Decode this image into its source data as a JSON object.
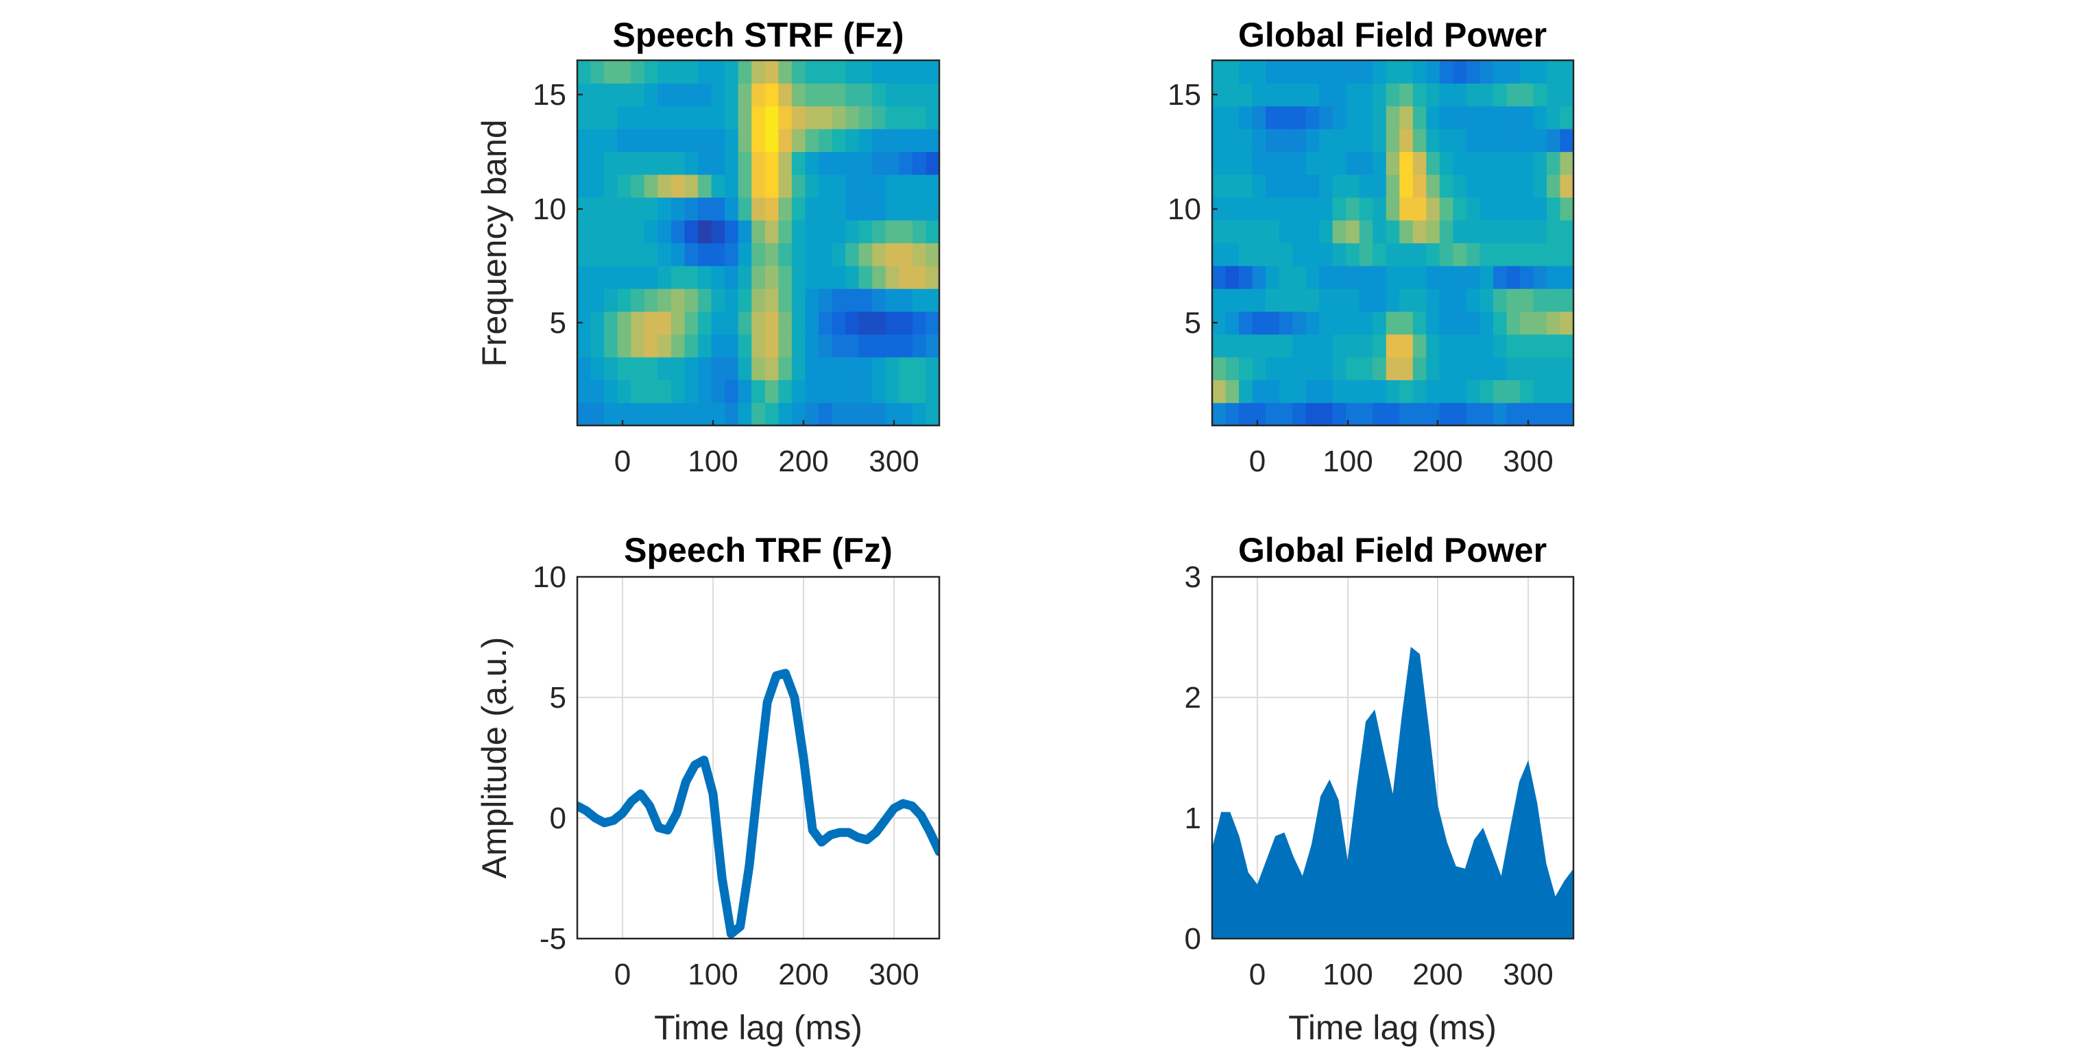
{
  "chart_data": [
    {
      "type": "heatmap",
      "title": "Speech STRF (Fz)",
      "xlabel": "",
      "ylabel": "Frequency band",
      "xlim": [
        -50,
        350
      ],
      "ylim": [
        0.5,
        16.5
      ],
      "xticks": [
        "0",
        "100",
        "200",
        "300"
      ],
      "yticks": [
        "5",
        "10",
        "15"
      ],
      "x": [
        -50,
        -35,
        -20,
        -5,
        10,
        25,
        40,
        55,
        70,
        85,
        100,
        115,
        130,
        145,
        160,
        175,
        190,
        205,
        220,
        235,
        250,
        265,
        280,
        295,
        310,
        325,
        340
      ],
      "bands": [
        1,
        2,
        3,
        4,
        5,
        6,
        7,
        8,
        9,
        10,
        11,
        12,
        13,
        14,
        15,
        16
      ],
      "z": [
        [
          0.25,
          0.25,
          0.3,
          0.3,
          0.3,
          0.3,
          0.3,
          0.3,
          0.3,
          0.3,
          0.3,
          0.25,
          0.35,
          0.5,
          0.45,
          0.35,
          0.3,
          0.25,
          0.2,
          0.25,
          0.25,
          0.25,
          0.25,
          0.3,
          0.3,
          0.35,
          0.4
        ],
        [
          0.3,
          0.3,
          0.35,
          0.4,
          0.45,
          0.45,
          0.45,
          0.4,
          0.35,
          0.3,
          0.25,
          0.2,
          0.3,
          0.45,
          0.55,
          0.45,
          0.35,
          0.3,
          0.3,
          0.3,
          0.3,
          0.3,
          0.35,
          0.4,
          0.45,
          0.45,
          0.4
        ],
        [
          0.3,
          0.35,
          0.4,
          0.45,
          0.45,
          0.45,
          0.4,
          0.4,
          0.35,
          0.3,
          0.25,
          0.25,
          0.4,
          0.65,
          0.7,
          0.55,
          0.4,
          0.3,
          0.3,
          0.3,
          0.3,
          0.3,
          0.35,
          0.4,
          0.45,
          0.45,
          0.4
        ],
        [
          0.35,
          0.4,
          0.5,
          0.6,
          0.7,
          0.75,
          0.7,
          0.6,
          0.5,
          0.4,
          0.3,
          0.3,
          0.45,
          0.7,
          0.75,
          0.6,
          0.4,
          0.3,
          0.25,
          0.2,
          0.2,
          0.15,
          0.15,
          0.15,
          0.15,
          0.2,
          0.25
        ],
        [
          0.35,
          0.4,
          0.5,
          0.6,
          0.7,
          0.75,
          0.75,
          0.65,
          0.55,
          0.45,
          0.35,
          0.35,
          0.5,
          0.7,
          0.75,
          0.6,
          0.4,
          0.3,
          0.2,
          0.15,
          0.1,
          0.08,
          0.08,
          0.1,
          0.1,
          0.15,
          0.2
        ],
        [
          0.35,
          0.35,
          0.4,
          0.45,
          0.5,
          0.55,
          0.6,
          0.65,
          0.6,
          0.5,
          0.4,
          0.35,
          0.45,
          0.65,
          0.7,
          0.55,
          0.4,
          0.3,
          0.25,
          0.2,
          0.2,
          0.2,
          0.25,
          0.3,
          0.3,
          0.35,
          0.35
        ],
        [
          0.35,
          0.35,
          0.35,
          0.35,
          0.35,
          0.35,
          0.4,
          0.45,
          0.45,
          0.4,
          0.35,
          0.3,
          0.4,
          0.6,
          0.65,
          0.55,
          0.4,
          0.35,
          0.35,
          0.35,
          0.4,
          0.5,
          0.6,
          0.7,
          0.75,
          0.75,
          0.7
        ],
        [
          0.4,
          0.4,
          0.4,
          0.4,
          0.4,
          0.4,
          0.35,
          0.3,
          0.2,
          0.15,
          0.15,
          0.2,
          0.35,
          0.55,
          0.6,
          0.5,
          0.4,
          0.35,
          0.35,
          0.4,
          0.5,
          0.6,
          0.7,
          0.75,
          0.75,
          0.7,
          0.65
        ],
        [
          0.4,
          0.4,
          0.4,
          0.4,
          0.4,
          0.35,
          0.3,
          0.2,
          0.1,
          0.05,
          0.08,
          0.15,
          0.3,
          0.6,
          0.7,
          0.55,
          0.4,
          0.35,
          0.35,
          0.35,
          0.4,
          0.45,
          0.5,
          0.55,
          0.55,
          0.5,
          0.45
        ],
        [
          0.4,
          0.4,
          0.4,
          0.4,
          0.4,
          0.4,
          0.35,
          0.3,
          0.25,
          0.2,
          0.2,
          0.3,
          0.5,
          0.75,
          0.8,
          0.6,
          0.45,
          0.35,
          0.35,
          0.35,
          0.3,
          0.3,
          0.3,
          0.35,
          0.35,
          0.35,
          0.35
        ],
        [
          0.35,
          0.35,
          0.4,
          0.45,
          0.5,
          0.6,
          0.7,
          0.75,
          0.7,
          0.55,
          0.4,
          0.35,
          0.55,
          0.85,
          0.9,
          0.7,
          0.5,
          0.4,
          0.35,
          0.35,
          0.3,
          0.3,
          0.3,
          0.35,
          0.35,
          0.35,
          0.35
        ],
        [
          0.35,
          0.35,
          0.4,
          0.4,
          0.4,
          0.4,
          0.4,
          0.4,
          0.35,
          0.3,
          0.3,
          0.35,
          0.55,
          0.85,
          0.9,
          0.7,
          0.45,
          0.35,
          0.3,
          0.3,
          0.3,
          0.3,
          0.25,
          0.25,
          0.2,
          0.15,
          0.1
        ],
        [
          0.35,
          0.35,
          0.35,
          0.3,
          0.3,
          0.3,
          0.3,
          0.3,
          0.3,
          0.3,
          0.3,
          0.35,
          0.6,
          0.9,
          0.95,
          0.8,
          0.65,
          0.55,
          0.5,
          0.45,
          0.4,
          0.35,
          0.3,
          0.3,
          0.3,
          0.3,
          0.3
        ],
        [
          0.4,
          0.4,
          0.4,
          0.35,
          0.35,
          0.35,
          0.35,
          0.35,
          0.35,
          0.35,
          0.35,
          0.4,
          0.6,
          0.9,
          0.95,
          0.85,
          0.75,
          0.7,
          0.7,
          0.65,
          0.6,
          0.55,
          0.5,
          0.45,
          0.45,
          0.45,
          0.4
        ],
        [
          0.4,
          0.4,
          0.4,
          0.4,
          0.4,
          0.35,
          0.3,
          0.3,
          0.3,
          0.3,
          0.35,
          0.4,
          0.6,
          0.85,
          0.9,
          0.75,
          0.6,
          0.55,
          0.55,
          0.55,
          0.5,
          0.5,
          0.45,
          0.4,
          0.4,
          0.4,
          0.4
        ],
        [
          0.45,
          0.5,
          0.55,
          0.55,
          0.5,
          0.45,
          0.4,
          0.4,
          0.4,
          0.35,
          0.35,
          0.4,
          0.55,
          0.7,
          0.75,
          0.6,
          0.5,
          0.45,
          0.45,
          0.45,
          0.4,
          0.4,
          0.35,
          0.35,
          0.35,
          0.35,
          0.35
        ]
      ]
    },
    {
      "type": "heatmap",
      "title": "Global Field Power",
      "xlabel": "",
      "ylabel": "",
      "xlim": [
        -50,
        350
      ],
      "ylim": [
        0.5,
        16.5
      ],
      "xticks": [
        "0",
        "100",
        "200",
        "300"
      ],
      "yticks": [
        "5",
        "10",
        "15"
      ],
      "x": [
        -50,
        -35,
        -20,
        -5,
        10,
        25,
        40,
        55,
        70,
        85,
        100,
        115,
        130,
        145,
        160,
        175,
        190,
        205,
        220,
        235,
        250,
        265,
        280,
        295,
        310,
        325,
        340
      ],
      "bands": [
        1,
        2,
        3,
        4,
        5,
        6,
        7,
        8,
        9,
        10,
        11,
        12,
        13,
        14,
        15,
        16
      ],
      "z": [
        [
          0.25,
          0.2,
          0.15,
          0.15,
          0.2,
          0.2,
          0.15,
          0.1,
          0.1,
          0.15,
          0.2,
          0.2,
          0.15,
          0.15,
          0.2,
          0.2,
          0.2,
          0.15,
          0.15,
          0.2,
          0.2,
          0.25,
          0.2,
          0.2,
          0.2,
          0.2,
          0.2
        ],
        [
          0.7,
          0.6,
          0.4,
          0.3,
          0.3,
          0.35,
          0.35,
          0.3,
          0.3,
          0.35,
          0.35,
          0.35,
          0.35,
          0.4,
          0.45,
          0.4,
          0.35,
          0.35,
          0.35,
          0.4,
          0.45,
          0.5,
          0.5,
          0.45,
          0.4,
          0.4,
          0.4
        ],
        [
          0.55,
          0.5,
          0.45,
          0.4,
          0.35,
          0.35,
          0.35,
          0.35,
          0.35,
          0.4,
          0.45,
          0.45,
          0.5,
          0.75,
          0.75,
          0.5,
          0.4,
          0.35,
          0.35,
          0.35,
          0.35,
          0.35,
          0.4,
          0.4,
          0.4,
          0.4,
          0.4
        ],
        [
          0.4,
          0.4,
          0.4,
          0.4,
          0.4,
          0.4,
          0.35,
          0.35,
          0.35,
          0.4,
          0.4,
          0.4,
          0.45,
          0.8,
          0.8,
          0.55,
          0.4,
          0.35,
          0.35,
          0.35,
          0.35,
          0.4,
          0.45,
          0.45,
          0.45,
          0.45,
          0.45
        ],
        [
          0.35,
          0.3,
          0.2,
          0.15,
          0.15,
          0.2,
          0.25,
          0.3,
          0.35,
          0.35,
          0.35,
          0.35,
          0.4,
          0.55,
          0.55,
          0.45,
          0.35,
          0.3,
          0.3,
          0.3,
          0.35,
          0.45,
          0.55,
          0.6,
          0.6,
          0.65,
          0.7
        ],
        [
          0.35,
          0.35,
          0.35,
          0.35,
          0.4,
          0.4,
          0.4,
          0.4,
          0.35,
          0.35,
          0.35,
          0.3,
          0.3,
          0.35,
          0.4,
          0.4,
          0.35,
          0.3,
          0.3,
          0.35,
          0.4,
          0.5,
          0.55,
          0.55,
          0.5,
          0.5,
          0.5
        ],
        [
          0.15,
          0.1,
          0.15,
          0.25,
          0.35,
          0.4,
          0.4,
          0.35,
          0.3,
          0.3,
          0.3,
          0.3,
          0.3,
          0.35,
          0.35,
          0.35,
          0.3,
          0.3,
          0.3,
          0.3,
          0.35,
          0.2,
          0.15,
          0.2,
          0.25,
          0.3,
          0.3
        ],
        [
          0.35,
          0.35,
          0.4,
          0.4,
          0.4,
          0.4,
          0.35,
          0.35,
          0.35,
          0.4,
          0.45,
          0.5,
          0.45,
          0.4,
          0.4,
          0.4,
          0.45,
          0.5,
          0.55,
          0.5,
          0.45,
          0.45,
          0.45,
          0.45,
          0.45,
          0.45,
          0.45
        ],
        [
          0.4,
          0.4,
          0.4,
          0.4,
          0.4,
          0.35,
          0.35,
          0.35,
          0.4,
          0.6,
          0.65,
          0.5,
          0.4,
          0.45,
          0.6,
          0.7,
          0.65,
          0.5,
          0.4,
          0.4,
          0.4,
          0.4,
          0.4,
          0.4,
          0.4,
          0.45,
          0.45
        ],
        [
          0.35,
          0.35,
          0.35,
          0.35,
          0.35,
          0.35,
          0.35,
          0.35,
          0.35,
          0.45,
          0.5,
          0.45,
          0.4,
          0.6,
          0.85,
          0.85,
          0.7,
          0.55,
          0.45,
          0.4,
          0.35,
          0.35,
          0.35,
          0.35,
          0.35,
          0.45,
          0.55
        ],
        [
          0.4,
          0.4,
          0.4,
          0.35,
          0.3,
          0.3,
          0.3,
          0.3,
          0.35,
          0.4,
          0.4,
          0.35,
          0.35,
          0.6,
          0.9,
          0.8,
          0.6,
          0.45,
          0.4,
          0.35,
          0.35,
          0.35,
          0.35,
          0.35,
          0.4,
          0.55,
          0.75
        ],
        [
          0.35,
          0.35,
          0.35,
          0.3,
          0.3,
          0.3,
          0.3,
          0.35,
          0.35,
          0.35,
          0.3,
          0.3,
          0.35,
          0.65,
          0.9,
          0.75,
          0.5,
          0.4,
          0.35,
          0.35,
          0.35,
          0.35,
          0.35,
          0.35,
          0.4,
          0.5,
          0.65
        ],
        [
          0.35,
          0.35,
          0.35,
          0.3,
          0.25,
          0.25,
          0.25,
          0.3,
          0.35,
          0.35,
          0.35,
          0.35,
          0.4,
          0.6,
          0.75,
          0.55,
          0.4,
          0.35,
          0.35,
          0.3,
          0.3,
          0.3,
          0.3,
          0.3,
          0.3,
          0.25,
          0.15
        ],
        [
          0.35,
          0.35,
          0.3,
          0.25,
          0.15,
          0.15,
          0.15,
          0.2,
          0.25,
          0.3,
          0.35,
          0.35,
          0.4,
          0.6,
          0.7,
          0.5,
          0.35,
          0.3,
          0.3,
          0.3,
          0.3,
          0.3,
          0.3,
          0.3,
          0.35,
          0.4,
          0.45
        ],
        [
          0.4,
          0.4,
          0.4,
          0.35,
          0.35,
          0.35,
          0.35,
          0.35,
          0.3,
          0.3,
          0.35,
          0.35,
          0.4,
          0.5,
          0.55,
          0.45,
          0.4,
          0.35,
          0.35,
          0.4,
          0.4,
          0.45,
          0.5,
          0.5,
          0.45,
          0.4,
          0.4
        ],
        [
          0.4,
          0.4,
          0.35,
          0.35,
          0.3,
          0.3,
          0.3,
          0.3,
          0.3,
          0.3,
          0.3,
          0.3,
          0.35,
          0.4,
          0.4,
          0.35,
          0.3,
          0.2,
          0.15,
          0.2,
          0.25,
          0.3,
          0.3,
          0.35,
          0.35,
          0.4,
          0.4
        ]
      ]
    },
    {
      "type": "line",
      "title": "Speech TRF (Fz)",
      "xlabel": "Time lag (ms)",
      "ylabel": "Amplitude (a.u.)",
      "xlim": [
        -50,
        350
      ],
      "ylim": [
        -5,
        10
      ],
      "xticks": [
        "0",
        "100",
        "200",
        "300"
      ],
      "yticks": [
        "-5",
        "0",
        "5",
        "10"
      ],
      "color": "#0072BD",
      "x": [
        -50,
        -40,
        -30,
        -20,
        -10,
        0,
        10,
        20,
        30,
        40,
        50,
        60,
        70,
        80,
        90,
        100,
        110,
        120,
        130,
        140,
        150,
        160,
        170,
        180,
        190,
        200,
        210,
        220,
        230,
        240,
        250,
        260,
        270,
        280,
        290,
        300,
        310,
        320,
        330,
        340,
        350
      ],
      "values": [
        0.5,
        0.3,
        0.0,
        -0.2,
        -0.1,
        0.2,
        0.7,
        1.0,
        0.5,
        -0.4,
        -0.5,
        0.2,
        1.5,
        2.2,
        2.4,
        1.0,
        -2.5,
        -4.8,
        -4.5,
        -2.0,
        1.5,
        4.8,
        5.9,
        6.0,
        5.0,
        2.5,
        -0.5,
        -1.0,
        -0.7,
        -0.6,
        -0.6,
        -0.8,
        -0.9,
        -0.6,
        -0.1,
        0.4,
        0.6,
        0.5,
        0.1,
        -0.6,
        -1.4
      ]
    },
    {
      "type": "area",
      "title": "Global Field Power",
      "xlabel": "Time lag (ms)",
      "ylabel": "",
      "xlim": [
        -50,
        350
      ],
      "ylim": [
        0,
        3
      ],
      "xticks": [
        "0",
        "100",
        "200",
        "300"
      ],
      "yticks": [
        "0",
        "1",
        "2",
        "3"
      ],
      "color": "#0072BD",
      "x": [
        -50,
        -40,
        -30,
        -20,
        -10,
        0,
        10,
        20,
        30,
        40,
        50,
        60,
        70,
        80,
        90,
        100,
        110,
        120,
        130,
        140,
        150,
        160,
        170,
        180,
        190,
        200,
        210,
        220,
        230,
        240,
        250,
        260,
        270,
        280,
        290,
        300,
        310,
        320,
        330,
        340,
        350
      ],
      "values": [
        0.75,
        1.05,
        1.05,
        0.85,
        0.55,
        0.45,
        0.65,
        0.85,
        0.88,
        0.68,
        0.52,
        0.78,
        1.18,
        1.32,
        1.15,
        0.65,
        1.25,
        1.8,
        1.9,
        1.55,
        1.2,
        1.85,
        2.42,
        2.36,
        1.75,
        1.1,
        0.8,
        0.6,
        0.58,
        0.82,
        0.92,
        0.72,
        0.52,
        0.92,
        1.3,
        1.48,
        1.12,
        0.62,
        0.35,
        0.48,
        0.58
      ]
    }
  ]
}
